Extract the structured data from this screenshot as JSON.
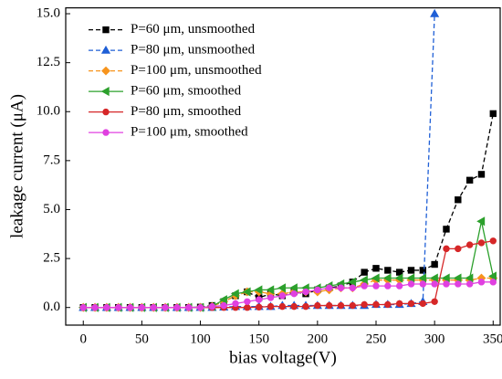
{
  "chart_data": {
    "type": "line",
    "xlabel": "bias voltage(V)",
    "ylabel": "leakage current (μA)",
    "x": [
      0,
      10,
      20,
      30,
      40,
      50,
      60,
      70,
      80,
      90,
      100,
      110,
      120,
      130,
      140,
      150,
      160,
      170,
      180,
      190,
      200,
      210,
      220,
      230,
      240,
      250,
      260,
      270,
      280,
      290,
      300,
      310,
      320,
      330,
      340,
      350
    ],
    "xlim": [
      -15,
      356
    ],
    "xticks": [
      0,
      50,
      100,
      150,
      200,
      250,
      300,
      350
    ],
    "ylim": [
      -0.9,
      15.3
    ],
    "yticks": [
      {
        "value": 0,
        "label": "0.0"
      },
      2.5,
      {
        "value": 5,
        "label": "5.0"
      },
      7.5,
      {
        "value": 10,
        "label": "10.0"
      },
      12.5,
      {
        "value": 15,
        "label": "15.0"
      }
    ],
    "grid": false,
    "legend": "upper left",
    "series": [
      {
        "name": "P=60 μm, unsmoothed",
        "color": "#000000",
        "marker": "square",
        "dash": true,
        "values": [
          0,
          0,
          0,
          0,
          0,
          0,
          0,
          0,
          0,
          0,
          0.02,
          0.1,
          0.3,
          0.6,
          0.8,
          0.5,
          0.7,
          0.6,
          0.8,
          0.7,
          0.9,
          1.0,
          1.1,
          1.3,
          1.8,
          2.0,
          1.9,
          1.8,
          1.9,
          1.9,
          2.2,
          4.0,
          5.5,
          6.5,
          6.8,
          9.9
        ]
      },
      {
        "name": "P=80 μm, unsmoothed",
        "color": "#1f5fd6",
        "marker": "triangle",
        "dash": true,
        "values": [
          0,
          0,
          0,
          0,
          0,
          0,
          0,
          0,
          0,
          0,
          0,
          0,
          0.02,
          0.05,
          0.05,
          0.05,
          0.05,
          0.1,
          0.1,
          0.1,
          0.1,
          0.1,
          0.1,
          0.1,
          0.1,
          0.15,
          0.15,
          0.15,
          0.2,
          0.3,
          15,
          null,
          null,
          null,
          null,
          null
        ]
      },
      {
        "name": "P=100 μm, unsmoothed",
        "color": "#f7941d",
        "marker": "diamond",
        "dash": true,
        "values": [
          0,
          0,
          0,
          0,
          0,
          0,
          0,
          0,
          0,
          0,
          0,
          0.05,
          0.3,
          0.6,
          0.8,
          0.8,
          0.7,
          0.7,
          0.8,
          0.8,
          0.8,
          0.9,
          1.0,
          1.0,
          1.2,
          1.4,
          1.4,
          1.4,
          1.4,
          1.4,
          1.4,
          1.4,
          1.4,
          1.4,
          1.5,
          1.5
        ]
      },
      {
        "name": "P=60 μm, smoothed",
        "color": "#2ca02c",
        "marker": "lefttriangle",
        "dash": false,
        "values": [
          0,
          0,
          0,
          0,
          0,
          0,
          0,
          0,
          0,
          0,
          0,
          0.05,
          0.4,
          0.7,
          0.8,
          0.9,
          0.9,
          1.0,
          1.0,
          1.0,
          1.0,
          1.1,
          1.2,
          1.3,
          1.4,
          1.5,
          1.5,
          1.5,
          1.5,
          1.5,
          1.5,
          1.5,
          1.5,
          1.5,
          4.4,
          1.6
        ]
      },
      {
        "name": "P=80 μm, smoothed",
        "color": "#d62728",
        "marker": "circle",
        "dash": false,
        "values": [
          0,
          0,
          0,
          0,
          0,
          0,
          0,
          0,
          0,
          0,
          0,
          0,
          0,
          0,
          0,
          0.02,
          0.05,
          0.05,
          0.05,
          0.05,
          0.1,
          0.1,
          0.1,
          0.1,
          0.15,
          0.15,
          0.15,
          0.2,
          0.2,
          0.2,
          0.3,
          3.0,
          3.0,
          3.2,
          3.3,
          3.4
        ]
      },
      {
        "name": "P=100 μm, smoothed",
        "color": "#e040e0",
        "marker": "circle",
        "dash": false,
        "values": [
          0,
          0,
          0,
          0,
          0,
          0,
          0,
          0,
          0,
          0,
          0,
          0.05,
          0.1,
          0.2,
          0.3,
          0.4,
          0.5,
          0.6,
          0.7,
          0.8,
          0.9,
          1.0,
          1.0,
          1.0,
          1.1,
          1.1,
          1.1,
          1.1,
          1.2,
          1.2,
          1.2,
          1.2,
          1.2,
          1.2,
          1.3,
          1.3
        ]
      }
    ]
  }
}
